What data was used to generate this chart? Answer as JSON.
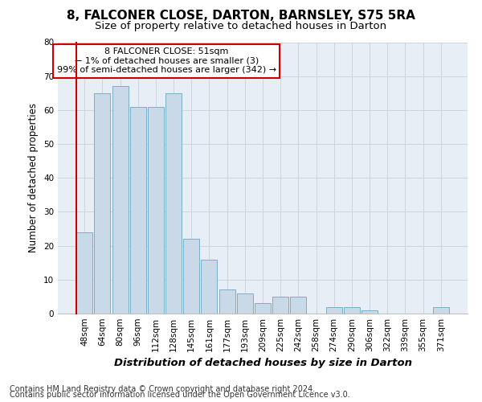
{
  "title_line1": "8, FALCONER CLOSE, DARTON, BARNSLEY, S75 5RA",
  "title_line2": "Size of property relative to detached houses in Darton",
  "xlabel": "Distribution of detached houses by size in Darton",
  "ylabel": "Number of detached properties",
  "categories": [
    "48sqm",
    "64sqm",
    "80sqm",
    "96sqm",
    "112sqm",
    "128sqm",
    "145sqm",
    "161sqm",
    "177sqm",
    "193sqm",
    "209sqm",
    "225sqm",
    "242sqm",
    "258sqm",
    "274sqm",
    "290sqm",
    "306sqm",
    "322sqm",
    "339sqm",
    "355sqm",
    "371sqm"
  ],
  "values": [
    24,
    65,
    67,
    61,
    61,
    65,
    22,
    16,
    7,
    6,
    3,
    5,
    5,
    0,
    2,
    2,
    1,
    0,
    0,
    0,
    2
  ],
  "bar_color": "#c9d9e8",
  "bar_edge_color": "#7aafc8",
  "highlight_color": "#cc0000",
  "annotation_box_text": "8 FALCONER CLOSE: 51sqm\n← 1% of detached houses are smaller (3)\n99% of semi-detached houses are larger (342) →",
  "ylim": [
    0,
    80
  ],
  "yticks": [
    0,
    10,
    20,
    30,
    40,
    50,
    60,
    70,
    80
  ],
  "grid_color": "#ccd4e0",
  "plot_bg_color": "#e8eef5",
  "fig_bg_color": "#ffffff",
  "title_fontsize": 11,
  "subtitle_fontsize": 9.5,
  "tick_fontsize": 7.5,
  "ylabel_fontsize": 8.5,
  "xlabel_fontsize": 9.5,
  "annotation_fontsize": 8,
  "footer_fontsize": 7,
  "footer_line1": "Contains HM Land Registry data © Crown copyright and database right 2024.",
  "footer_line2": "Contains public sector information licensed under the Open Government Licence v3.0."
}
